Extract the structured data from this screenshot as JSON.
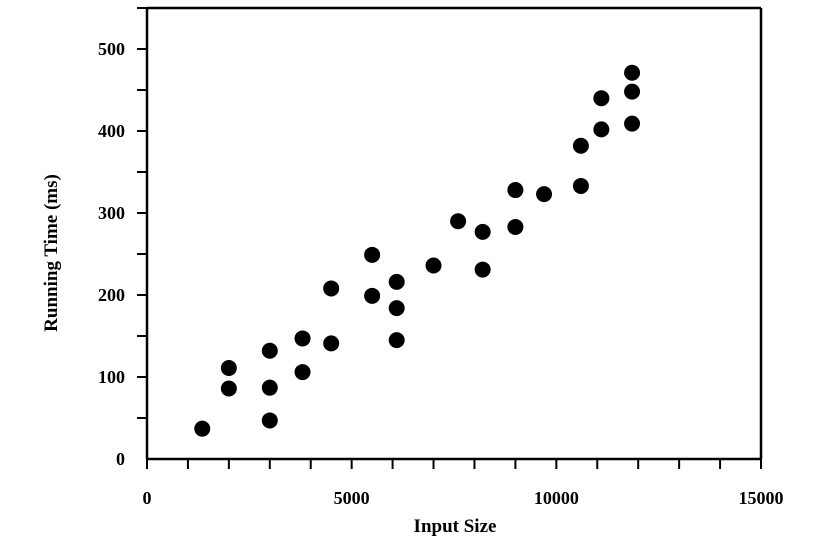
{
  "chart_data": {
    "type": "scatter",
    "title": "",
    "xlabel": "Input Size",
    "ylabel": "Running Time (ms)",
    "xlim": [
      0,
      15000
    ],
    "ylim": [
      0,
      550
    ],
    "x_ticks": [
      0,
      5000,
      10000,
      15000
    ],
    "y_ticks": [
      0,
      100,
      200,
      300,
      400,
      500
    ],
    "x_tick_labels": [
      "0",
      "5000",
      "10000",
      "15000"
    ],
    "y_tick_labels": [
      "0",
      "100",
      "200",
      "300",
      "400",
      "500"
    ],
    "grid": false,
    "legend": "none",
    "marker_color": "#000000",
    "points": [
      {
        "x": 1350,
        "y": 37
      },
      {
        "x": 2000,
        "y": 111
      },
      {
        "x": 2000,
        "y": 86
      },
      {
        "x": 3000,
        "y": 132
      },
      {
        "x": 3000,
        "y": 87
      },
      {
        "x": 3000,
        "y": 47
      },
      {
        "x": 3800,
        "y": 147
      },
      {
        "x": 3800,
        "y": 106
      },
      {
        "x": 4500,
        "y": 208
      },
      {
        "x": 4500,
        "y": 141
      },
      {
        "x": 5500,
        "y": 249
      },
      {
        "x": 5500,
        "y": 199
      },
      {
        "x": 6100,
        "y": 216
      },
      {
        "x": 6100,
        "y": 184
      },
      {
        "x": 6100,
        "y": 145
      },
      {
        "x": 7000,
        "y": 236
      },
      {
        "x": 7600,
        "y": 290
      },
      {
        "x": 8200,
        "y": 277
      },
      {
        "x": 8200,
        "y": 231
      },
      {
        "x": 9000,
        "y": 328
      },
      {
        "x": 9000,
        "y": 283
      },
      {
        "x": 9700,
        "y": 323
      },
      {
        "x": 10600,
        "y": 382
      },
      {
        "x": 10600,
        "y": 333
      },
      {
        "x": 11100,
        "y": 440
      },
      {
        "x": 11100,
        "y": 402
      },
      {
        "x": 11850,
        "y": 471
      },
      {
        "x": 11850,
        "y": 448
      },
      {
        "x": 11850,
        "y": 409
      }
    ]
  }
}
